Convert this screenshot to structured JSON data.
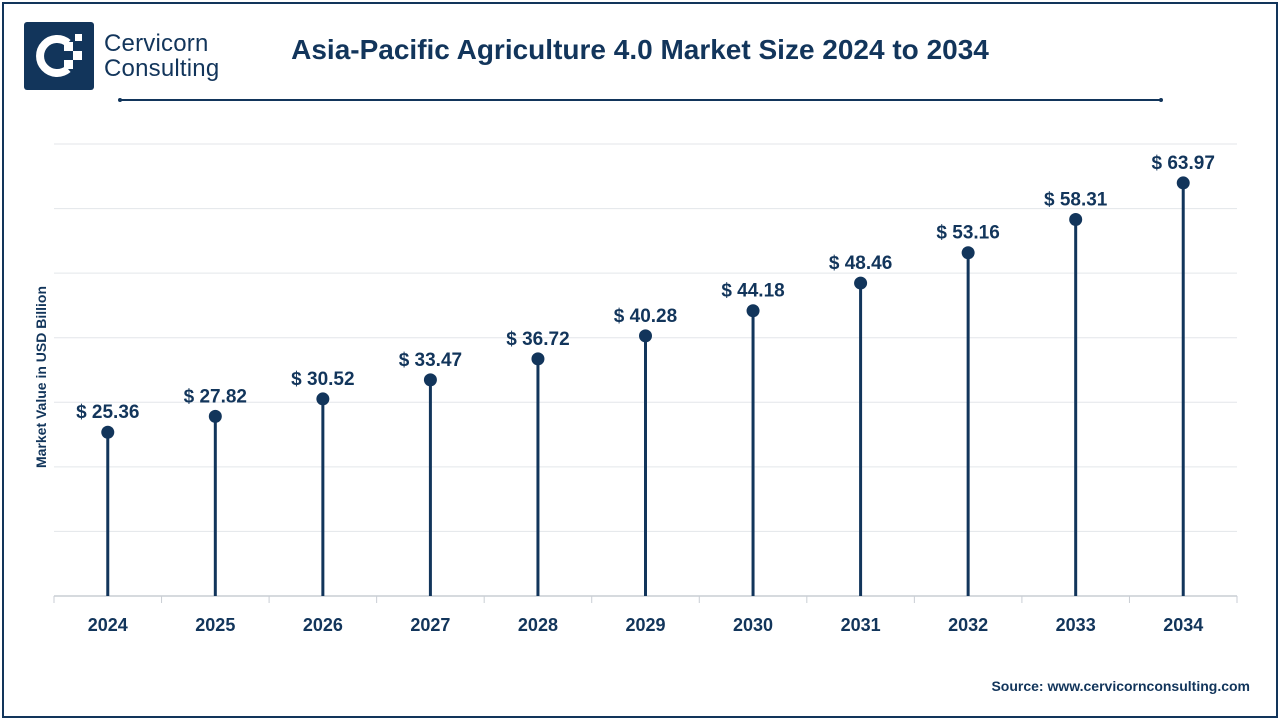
{
  "logo": {
    "line1": "Cervicorn",
    "line2": "Consulting"
  },
  "colors": {
    "primary": "#12355b",
    "grid": "#e3e6ea",
    "axis": "#c9ced4"
  },
  "source": "Source: www.cervicornconsulting.com",
  "chart_data": {
    "type": "lollipop",
    "title": "Asia-Pacific Agriculture 4.0 Market Size 2024 to 2034",
    "ylabel": "Market Value in USD Billion",
    "xlabel": "",
    "value_prefix": "$ ",
    "categories": [
      "2024",
      "2025",
      "2026",
      "2027",
      "2028",
      "2029",
      "2030",
      "2031",
      "2032",
      "2033",
      "2034"
    ],
    "values": [
      25.36,
      27.82,
      30.52,
      33.47,
      36.72,
      40.28,
      44.18,
      48.46,
      53.16,
      58.31,
      63.97
    ],
    "ylim": [
      0,
      70
    ],
    "grid": true,
    "legend": "none"
  }
}
